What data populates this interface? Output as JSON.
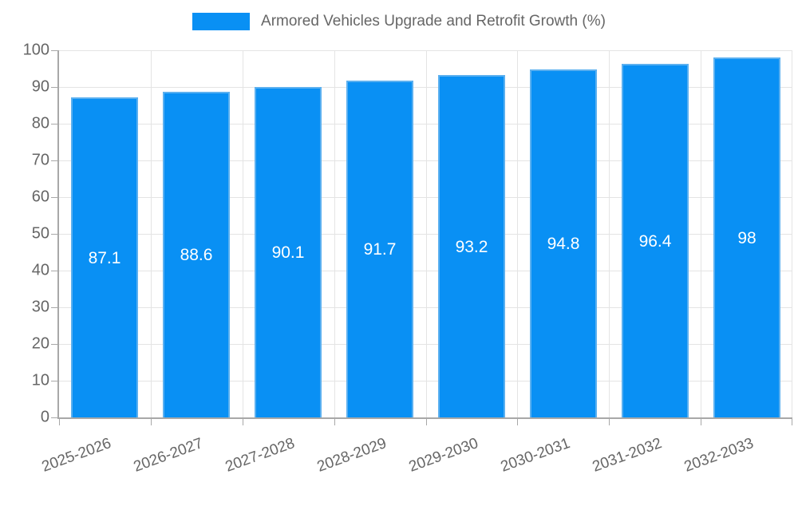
{
  "chart_data": {
    "type": "bar",
    "title": "",
    "series_name": "Armored Vehicles Upgrade and Retrofit Growth (%)",
    "categories": [
      "2025-2026",
      "2026-2027",
      "2027-2028",
      "2028-2029",
      "2029-2030",
      "2030-2031",
      "2031-2032",
      "2032-2033"
    ],
    "values": [
      87.1,
      88.6,
      90.1,
      91.7,
      93.2,
      94.8,
      96.4,
      98
    ],
    "value_labels": [
      "87.1",
      "88.6",
      "90.1",
      "91.7",
      "93.2",
      "94.8",
      "96.4",
      "98"
    ],
    "xlabel": "",
    "ylabel": "",
    "ylim": [
      0,
      100
    ],
    "yticks": [
      0,
      10,
      20,
      30,
      40,
      50,
      60,
      70,
      80,
      90,
      100
    ],
    "grid": true,
    "legend_position": "top",
    "x_label_rotation_deg": -20,
    "colors": {
      "bar_fill": "#0990f4",
      "bar_border": "#5bb0f0",
      "value_label_text": "#ffffff",
      "axis_text": "#666666",
      "gridline": "#e4e4e4",
      "axis_line": "#a8a8a8",
      "background": "#ffffff"
    }
  }
}
